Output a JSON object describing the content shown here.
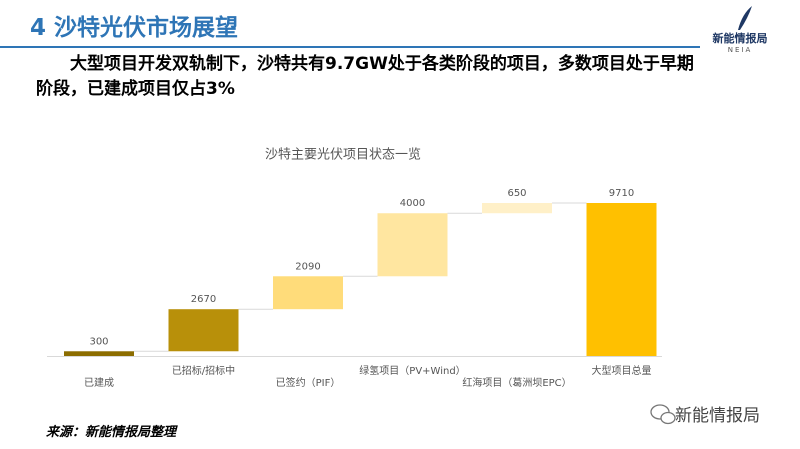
{
  "header": {
    "title": "4 沙特光伏市场展望",
    "logo_name": "新能情报局",
    "logo_sub": "NEIA"
  },
  "headline": "大型项目开发双轨制下，沙特共有9.7GW处于各类阶段的项目，多数项目处于早期阶段，已建成项目仅占3%",
  "chart_data": {
    "type": "waterfall",
    "title": "沙特主要光伏项目状态一览",
    "categories": [
      "已建成",
      "已招标/招标中",
      "已签约（PIF）",
      "绿氢项目（PV+Wind）",
      "红海项目（葛洲坝EPC）"
    ],
    "values": [
      300,
      2670,
      2090,
      4000,
      650
    ],
    "colors": [
      "#8c6d00",
      "#b8900a",
      "#ffdc7a",
      "#ffe6a0",
      "#fff0c8"
    ],
    "total": {
      "label": "大型项目总量",
      "value": 9710,
      "color": "#ffc000"
    }
  },
  "source": "来源：新能情报局整理",
  "watermark": "新能情报局"
}
